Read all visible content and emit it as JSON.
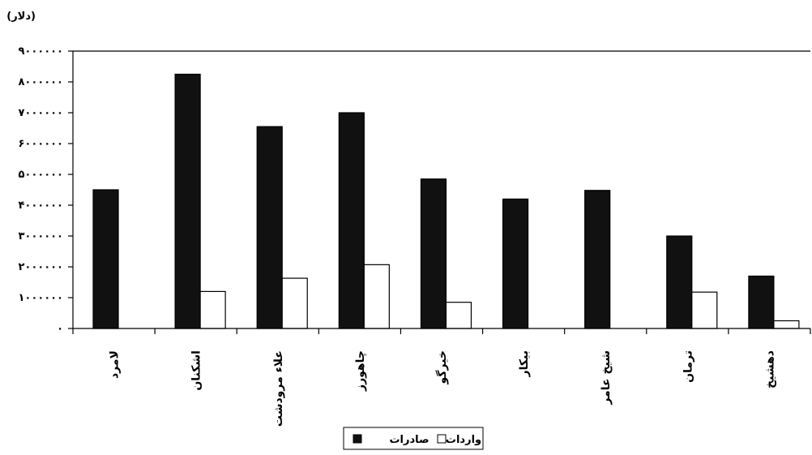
{
  "chart_data": {
    "type": "bar",
    "unit_label": "(دلار)",
    "categories": [
      "لامرد",
      "اشکنان",
      "علاء مرودشت",
      "چاهورز",
      "خیرگو",
      "بیکار",
      "شیخ عامر",
      "ترمان",
      "دهشیخ"
    ],
    "series": [
      {
        "name": "صادرات",
        "values": [
          4500000,
          8250000,
          6550000,
          7000000,
          4850000,
          4200000,
          4480000,
          3000000,
          1700000
        ]
      },
      {
        "name": "واردات",
        "values": [
          0,
          1200000,
          1630000,
          2070000,
          850000,
          0,
          0,
          1180000,
          250000
        ]
      }
    ],
    "y_ticks": [
      "۰",
      "۱۰۰۰۰۰۰",
      "۲۰۰۰۰۰۰",
      "۳۰۰۰۰۰۰",
      "۴۰۰۰۰۰۰",
      "۵۰۰۰۰۰۰",
      "۶۰۰۰۰۰۰",
      "۷۰۰۰۰۰۰",
      "۸۰۰۰۰۰۰",
      "۹۰۰۰۰۰۰"
    ],
    "ylim": [
      0,
      9000000
    ],
    "legend_position": "bottom",
    "colors": {
      "صادرات": "#111111",
      "واردات": "#ffffff"
    }
  }
}
